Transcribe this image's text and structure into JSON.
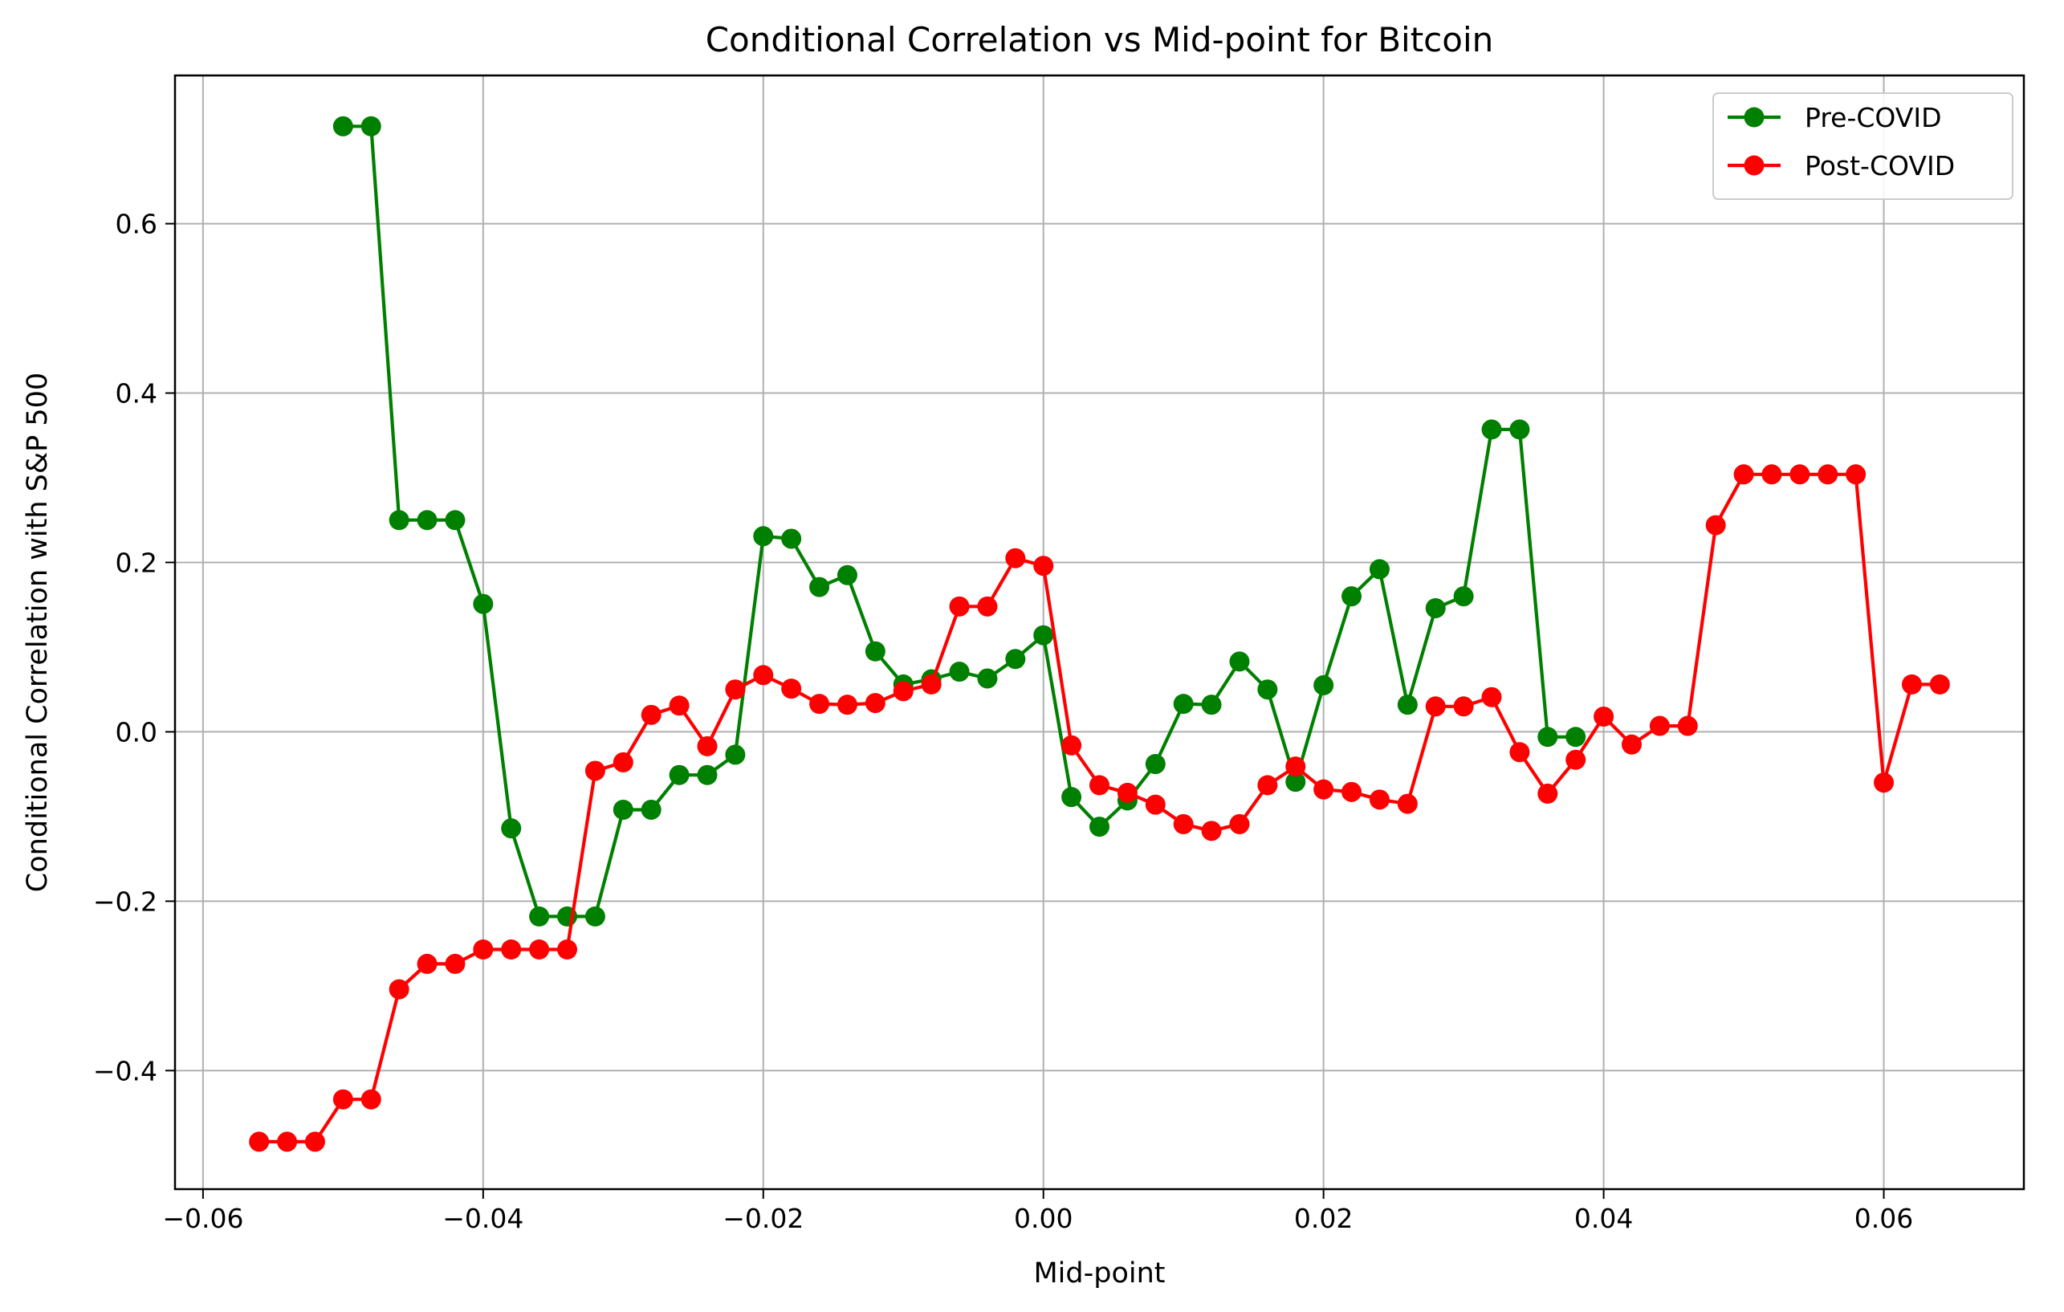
{
  "chart_data": {
    "type": "line",
    "title": "Conditional Correlation vs Mid-point for Bitcoin",
    "xlabel": "Mid-point",
    "ylabel": "Conditional Correlation with S&P 500",
    "xlim": [
      -0.062,
      0.07
    ],
    "ylim": [
      -0.54,
      0.775
    ],
    "xticks": [
      -0.06,
      -0.04,
      -0.02,
      0.0,
      0.02,
      0.04,
      0.06
    ],
    "xtick_labels": [
      "−0.06",
      "−0.04",
      "−0.02",
      "0.00",
      "0.02",
      "0.04",
      "0.06"
    ],
    "yticks": [
      -0.4,
      -0.2,
      0.0,
      0.2,
      0.4,
      0.6
    ],
    "ytick_labels": [
      "−0.4",
      "−0.2",
      "0.0",
      "0.2",
      "0.4",
      "0.6"
    ],
    "grid": true,
    "legend_position": "top-right",
    "series": [
      {
        "name": "Pre-COVID",
        "color": "#008000",
        "marker": "circle",
        "x": [
          -0.05,
          -0.048,
          -0.046,
          -0.044,
          -0.042,
          -0.04,
          -0.038,
          -0.036,
          -0.034,
          -0.032,
          -0.03,
          -0.028,
          -0.026,
          -0.024,
          -0.022,
          -0.02,
          -0.018,
          -0.016,
          -0.014,
          -0.012,
          -0.01,
          -0.008,
          -0.006,
          -0.004,
          -0.002,
          0.0,
          0.002,
          0.004,
          0.006,
          0.008,
          0.01,
          0.012,
          0.014,
          0.016,
          0.018,
          0.02,
          0.022,
          0.024,
          0.026,
          0.028,
          0.03,
          0.032,
          0.034,
          0.036,
          0.038
        ],
        "y": [
          0.715,
          0.715,
          0.25,
          0.25,
          0.25,
          0.151,
          -0.114,
          -0.218,
          -0.218,
          -0.218,
          -0.092,
          -0.092,
          -0.051,
          -0.051,
          -0.027,
          0.231,
          0.228,
          0.171,
          0.185,
          0.095,
          0.056,
          0.062,
          0.071,
          0.063,
          0.086,
          0.114,
          -0.077,
          -0.112,
          -0.081,
          -0.038,
          0.033,
          0.032,
          0.083,
          0.05,
          -0.059,
          0.055,
          0.16,
          0.192,
          0.032,
          0.146,
          0.16,
          0.357,
          0.357,
          -0.006,
          -0.006
        ]
      },
      {
        "name": "Post-COVID",
        "color": "#ff0000",
        "marker": "circle",
        "x": [
          -0.056,
          -0.054,
          -0.052,
          -0.05,
          -0.048,
          -0.046,
          -0.044,
          -0.042,
          -0.04,
          -0.038,
          -0.036,
          -0.034,
          -0.032,
          -0.03,
          -0.028,
          -0.026,
          -0.024,
          -0.022,
          -0.02,
          -0.018,
          -0.016,
          -0.014,
          -0.012,
          -0.01,
          -0.008,
          -0.006,
          -0.004,
          -0.002,
          0.0,
          0.002,
          0.004,
          0.006,
          0.008,
          0.01,
          0.012,
          0.014,
          0.016,
          0.018,
          0.02,
          0.022,
          0.024,
          0.026,
          0.028,
          0.03,
          0.032,
          0.034,
          0.036,
          0.038,
          0.04,
          0.042,
          0.044,
          0.046,
          0.048,
          0.05,
          0.052,
          0.054,
          0.056,
          0.058,
          0.06,
          0.062,
          0.064
        ],
        "y": [
          -0.484,
          -0.484,
          -0.484,
          -0.434,
          -0.434,
          -0.304,
          -0.274,
          -0.274,
          -0.257,
          -0.257,
          -0.257,
          -0.257,
          -0.046,
          -0.036,
          0.02,
          0.031,
          -0.017,
          0.05,
          0.067,
          0.051,
          0.033,
          0.032,
          0.034,
          0.048,
          0.056,
          0.148,
          0.148,
          0.205,
          0.196,
          -0.016,
          -0.063,
          -0.072,
          -0.086,
          -0.109,
          -0.117,
          -0.109,
          -0.063,
          -0.041,
          -0.068,
          -0.071,
          -0.08,
          -0.085,
          0.03,
          0.03,
          0.041,
          -0.024,
          -0.073,
          -0.033,
          0.018,
          -0.015,
          0.007,
          0.007,
          0.244,
          0.304,
          0.304,
          0.304,
          0.304,
          0.304,
          -0.06,
          0.056,
          0.056
        ]
      }
    ]
  }
}
